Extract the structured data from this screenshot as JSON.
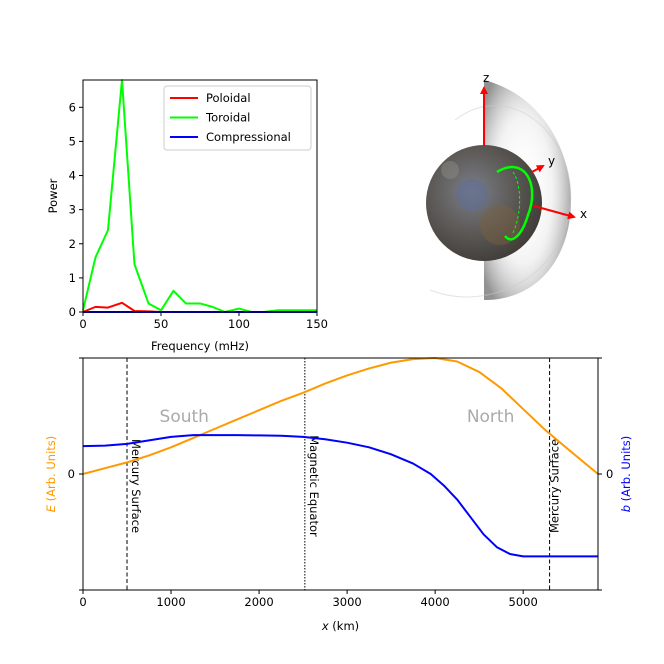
{
  "colors": {
    "poloidal": "#ff0000",
    "toroidal": "#00ff00",
    "compressional": "#0000ff",
    "e_field": "#ff9900",
    "b_field": "#0000ff",
    "region_label": "#aaaaaa",
    "axis_arrow": "#ff0000"
  },
  "chart_data": [
    {
      "type": "line",
      "xlabel": "Frequency (mHz)",
      "ylabel": "Power",
      "xlim": [
        0,
        150
      ],
      "ylim": [
        0,
        6.8
      ],
      "xticks": [
        0,
        50,
        100,
        150
      ],
      "yticks": [
        0,
        1,
        2,
        3,
        4,
        5,
        6
      ],
      "grid": false,
      "legend_position": "top-right",
      "x": [
        0,
        8,
        16,
        25,
        33,
        42,
        50,
        58,
        66,
        75,
        83,
        91,
        100,
        108,
        116,
        125,
        133,
        141,
        150
      ],
      "series": [
        {
          "name": "Poloidal",
          "color_key": "poloidal",
          "values": [
            0.0,
            0.15,
            0.13,
            0.27,
            0.03,
            0.02,
            0.0,
            0.0,
            0.0,
            0.0,
            0.0,
            0.0,
            0.0,
            0.0,
            0.0,
            0.0,
            0.0,
            0.0,
            0.0
          ]
        },
        {
          "name": "Toroidal",
          "color_key": "toroidal",
          "values": [
            0.05,
            1.6,
            2.4,
            6.8,
            1.4,
            0.25,
            0.05,
            0.62,
            0.25,
            0.25,
            0.15,
            0.0,
            0.1,
            0.0,
            0.0,
            0.05,
            0.05,
            0.05,
            0.05
          ]
        },
        {
          "name": "Compressional",
          "color_key": "compressional",
          "values": [
            0.0,
            0.0,
            0.0,
            0.0,
            0.0,
            0.0,
            0.0,
            0.0,
            0.0,
            0.0,
            0.0,
            0.0,
            0.0,
            0.0,
            0.0,
            0.0,
            0.0,
            0.0,
            0.0
          ]
        }
      ]
    },
    {
      "type": "line",
      "xlabel_var": "x",
      "xlabel_unit": " (km)",
      "ylabel_left_var": "E",
      "ylabel_left_unit": " (Arb. Units)",
      "ylabel_right_var": "b",
      "ylabel_right_unit": " (Arb. Units)",
      "xlim": [
        0,
        5850
      ],
      "ylim_left": [
        -1,
        1
      ],
      "ylim_right": [
        -1,
        1
      ],
      "xticks": [
        0,
        1000,
        2000,
        3000,
        4000,
        5000
      ],
      "yticks_left": [
        "0"
      ],
      "yticks_right": [
        "0"
      ],
      "grid": false,
      "series": [
        {
          "name": "E",
          "axis": "left",
          "color_key": "e_field",
          "x": [
            0,
            250,
            500,
            750,
            1000,
            1250,
            1500,
            1750,
            2000,
            2250,
            2500,
            2750,
            3000,
            3250,
            3500,
            3750,
            4000,
            4250,
            4500,
            4750,
            5000,
            5250,
            5500,
            5850
          ],
          "values": [
            0.0,
            0.05,
            0.1,
            0.16,
            0.23,
            0.31,
            0.39,
            0.47,
            0.55,
            0.63,
            0.7,
            0.78,
            0.85,
            0.91,
            0.96,
            0.99,
            1.0,
            0.97,
            0.88,
            0.74,
            0.56,
            0.38,
            0.22,
            0.0
          ]
        },
        {
          "name": "b",
          "axis": "right",
          "color_key": "b_field",
          "x": [
            0,
            250,
            500,
            750,
            1000,
            1250,
            1500,
            1750,
            2000,
            2250,
            2500,
            2750,
            3000,
            3250,
            3500,
            3750,
            3950,
            4100,
            4250,
            4400,
            4550,
            4700,
            4850,
            5000,
            5250,
            5500,
            5850
          ],
          "values": [
            0.24,
            0.245,
            0.26,
            0.29,
            0.32,
            0.335,
            0.335,
            0.335,
            0.333,
            0.33,
            0.32,
            0.3,
            0.27,
            0.23,
            0.17,
            0.09,
            0.0,
            -0.1,
            -0.22,
            -0.37,
            -0.52,
            -0.63,
            -0.69,
            -0.71,
            -0.71,
            -0.71,
            -0.71
          ]
        }
      ],
      "markers": [
        {
          "x": 500,
          "style": "dashed",
          "label": "Mercury Surface"
        },
        {
          "x": 2520,
          "style": "dotted",
          "label": "Magnetic Equator"
        },
        {
          "x": 5300,
          "style": "dashed",
          "label": "Mercury Surface"
        }
      ],
      "regions": [
        {
          "x": 1150,
          "label": "South"
        },
        {
          "x": 4630,
          "label": "North"
        }
      ]
    }
  ],
  "diagram": {
    "axes": [
      "z",
      "y",
      "x"
    ]
  }
}
